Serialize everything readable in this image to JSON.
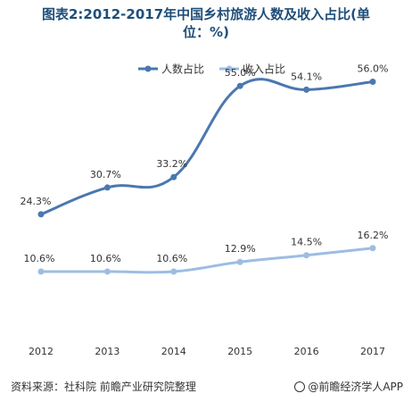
{
  "title_line1": "图表2:2012-2017年中国乡村旅游人数及收入占比(单",
  "title_line2": "位：%)",
  "source": "资料来源：社科院  前瞻产业研究院整理",
  "brand": "@前瞻经济学人APP",
  "chart_data": {
    "type": "line",
    "title": "图表2:2012-2017年中国乡村旅游人数及收入占比(单位：%)",
    "categories": [
      "2012",
      "2013",
      "2014",
      "2015",
      "2016",
      "2017"
    ],
    "series": [
      {
        "name": "人数占比",
        "values": [
          24.3,
          30.7,
          33.2,
          55.0,
          54.1,
          56.0
        ],
        "labels": [
          "24.3%",
          "30.7%",
          "33.2%",
          "55.0%",
          "54.1%",
          "56.0%"
        ],
        "color": "#4a78b0",
        "smooth": true
      },
      {
        "name": "收入占比",
        "values": [
          10.6,
          10.6,
          10.6,
          12.9,
          14.5,
          16.2
        ],
        "labels": [
          "10.6%",
          "10.6%",
          "10.6%",
          "12.9%",
          "14.5%",
          "16.2%"
        ],
        "color": "#9dbde2",
        "smooth": true
      }
    ],
    "legend": "top",
    "grid": false
  }
}
